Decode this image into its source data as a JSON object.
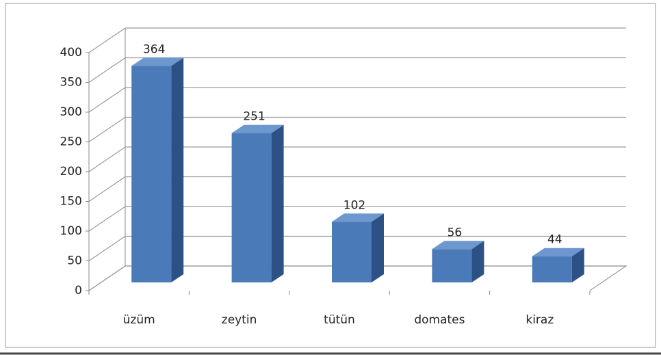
{
  "chart_data": {
    "type": "bar",
    "categories": [
      "üzüm",
      "zeytin",
      "tütün",
      "domates",
      "kiraz"
    ],
    "values": [
      364,
      251,
      102,
      56,
      44
    ],
    "color": "#4a7ab8",
    "ylim": [
      0,
      400
    ],
    "yticks": [
      0,
      50,
      100,
      150,
      200,
      250,
      300,
      350,
      400
    ],
    "grid": true
  }
}
